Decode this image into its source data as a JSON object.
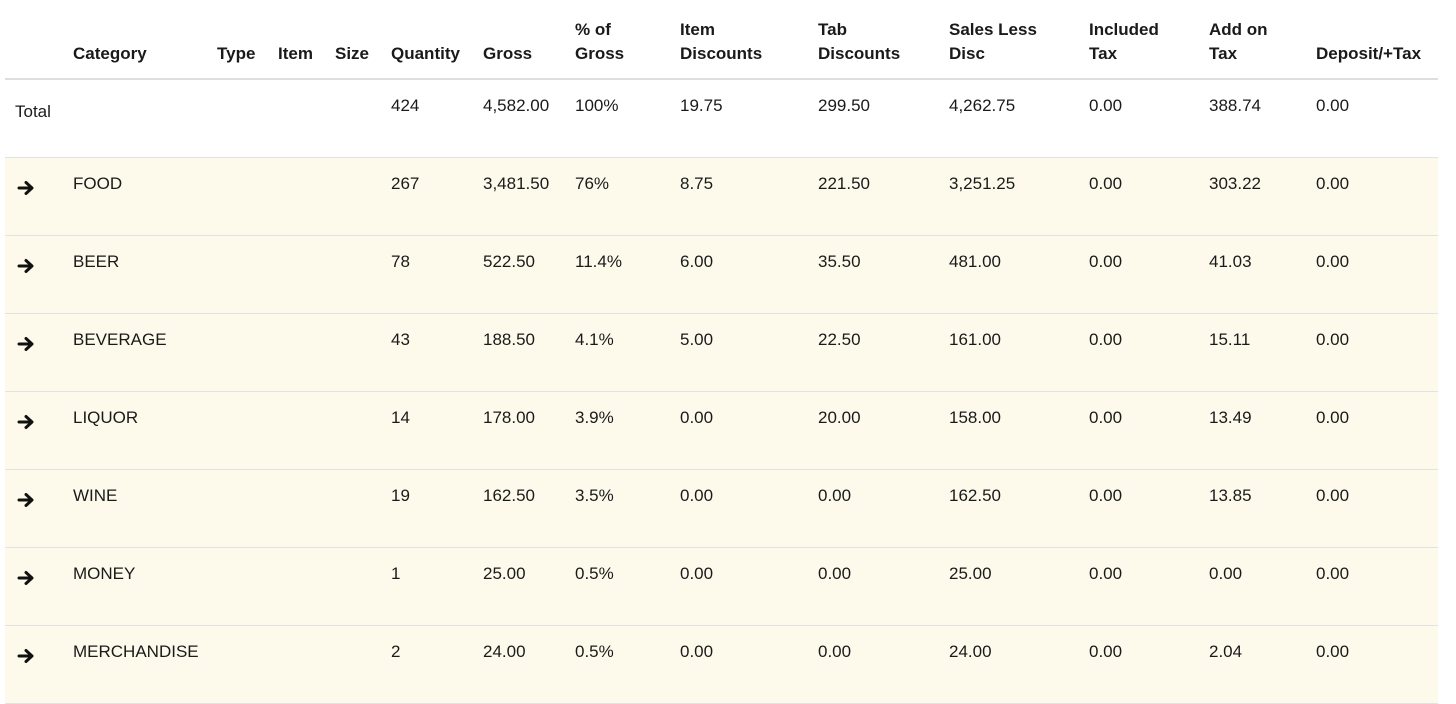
{
  "columns": {
    "arrow": "",
    "category": "Category",
    "type": "Type",
    "item": "Item",
    "size": "Size",
    "quantity": "Quantity",
    "gross": "Gross",
    "pct_gross": [
      "% of",
      "Gross"
    ],
    "item_discounts": [
      "Item",
      "Discounts"
    ],
    "tab_discounts": [
      "Tab",
      "Discounts"
    ],
    "sales_less_disc": [
      "Sales Less",
      "Disc"
    ],
    "included_tax": [
      "Included",
      "Tax"
    ],
    "add_on_tax": [
      "Add on",
      "Tax"
    ],
    "deposit_tax": "Deposit/+Tax"
  },
  "total": {
    "label": "Total",
    "quantity": "424",
    "gross": "4,582.00",
    "pct_gross": "100%",
    "item_discounts": "19.75",
    "tab_discounts": "299.50",
    "sales_less_disc": "4,262.75",
    "included_tax": "0.00",
    "add_on_tax": "388.74",
    "deposit_tax": "0.00"
  },
  "rows": [
    {
      "category": "FOOD",
      "quantity": "267",
      "gross": "3,481.50",
      "pct_gross": "76%",
      "item_discounts": "8.75",
      "tab_discounts": "221.50",
      "sales_less_disc": "3,251.25",
      "included_tax": "0.00",
      "add_on_tax": "303.22",
      "deposit_tax": "0.00"
    },
    {
      "category": "BEER",
      "quantity": "78",
      "gross": "522.50",
      "pct_gross": "11.4%",
      "item_discounts": "6.00",
      "tab_discounts": "35.50",
      "sales_less_disc": "481.00",
      "included_tax": "0.00",
      "add_on_tax": "41.03",
      "deposit_tax": "0.00"
    },
    {
      "category": "BEVERAGE",
      "quantity": "43",
      "gross": "188.50",
      "pct_gross": "4.1%",
      "item_discounts": "5.00",
      "tab_discounts": "22.50",
      "sales_less_disc": "161.00",
      "included_tax": "0.00",
      "add_on_tax": "15.11",
      "deposit_tax": "0.00"
    },
    {
      "category": "LIQUOR",
      "quantity": "14",
      "gross": "178.00",
      "pct_gross": "3.9%",
      "item_discounts": "0.00",
      "tab_discounts": "20.00",
      "sales_less_disc": "158.00",
      "included_tax": "0.00",
      "add_on_tax": "13.49",
      "deposit_tax": "0.00"
    },
    {
      "category": "WINE",
      "quantity": "19",
      "gross": "162.50",
      "pct_gross": "3.5%",
      "item_discounts": "0.00",
      "tab_discounts": "0.00",
      "sales_less_disc": "162.50",
      "included_tax": "0.00",
      "add_on_tax": "13.85",
      "deposit_tax": "0.00"
    },
    {
      "category": "MONEY",
      "quantity": "1",
      "gross": "25.00",
      "pct_gross": "0.5%",
      "item_discounts": "0.00",
      "tab_discounts": "0.00",
      "sales_less_disc": "25.00",
      "included_tax": "0.00",
      "add_on_tax": "0.00",
      "deposit_tax": "0.00"
    },
    {
      "category": "MERCHANDISE",
      "quantity": "2",
      "gross": "24.00",
      "pct_gross": "0.5%",
      "item_discounts": "0.00",
      "tab_discounts": "0.00",
      "sales_less_disc": "24.00",
      "included_tax": "0.00",
      "add_on_tax": "2.04",
      "deposit_tax": "0.00"
    }
  ],
  "icons": {
    "row_expand": "arrow-right-icon"
  },
  "colors": {
    "row_highlight": "#fdfaec",
    "border": "#e2e2e2",
    "text": "#1a1a1a"
  }
}
